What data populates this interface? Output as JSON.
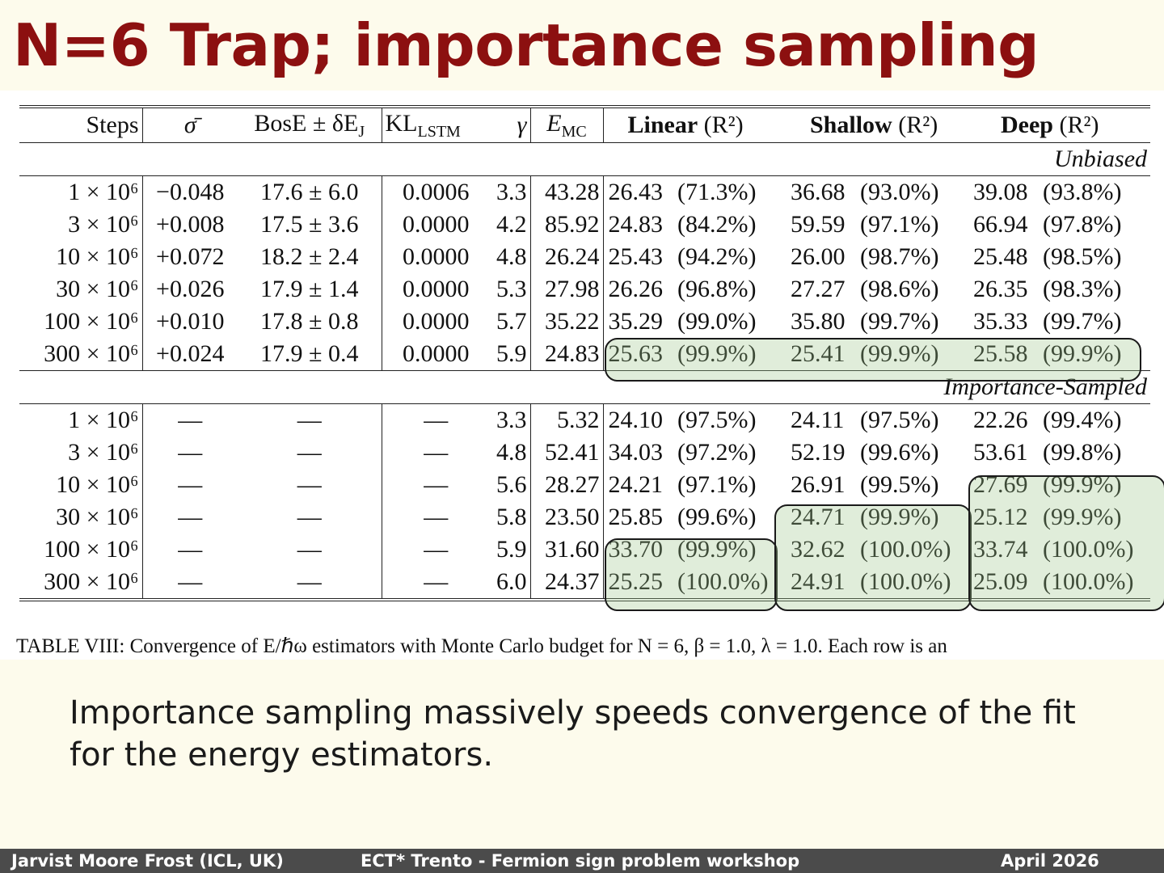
{
  "title": "N=6 Trap; importance sampling",
  "table": {
    "headers": {
      "steps": "Steps",
      "sigma": "σ̄",
      "bos": "BosE ± δE",
      "bos_sub": "J",
      "kl": "KL",
      "kl_sub": "LSTM",
      "gamma": "γ",
      "emc": "E",
      "emc_sub": "MC",
      "linear": "Linear",
      "shallow": "Shallow",
      "deep": "Deep",
      "r2": "(R²)"
    },
    "section_unbiased": "Unbiased",
    "section_importance": "Importance-Sampled",
    "unbiased_rows": [
      {
        "steps": "1 × 10⁶",
        "sigma": "−0.048",
        "bos": "17.6 ± 6.0",
        "kl": "0.0006",
        "gamma": "3.3",
        "emc": "43.28",
        "lin": "26.43",
        "lin_r": "(71.3%)",
        "sha": "36.68",
        "sha_r": "(93.0%)",
        "deep": "39.08",
        "deep_r": "(93.8%)"
      },
      {
        "steps": "3 × 10⁶",
        "sigma": "+0.008",
        "bos": "17.5 ± 3.6",
        "kl": "0.0000",
        "gamma": "4.2",
        "emc": "85.92",
        "lin": "24.83",
        "lin_r": "(84.2%)",
        "sha": "59.59",
        "sha_r": "(97.1%)",
        "deep": "66.94",
        "deep_r": "(97.8%)"
      },
      {
        "steps": "10 × 10⁶",
        "sigma": "+0.072",
        "bos": "18.2 ± 2.4",
        "kl": "0.0000",
        "gamma": "4.8",
        "emc": "26.24",
        "lin": "25.43",
        "lin_r": "(94.2%)",
        "sha": "26.00",
        "sha_r": "(98.7%)",
        "deep": "25.48",
        "deep_r": "(98.5%)"
      },
      {
        "steps": "30 × 10⁶",
        "sigma": "+0.026",
        "bos": "17.9 ± 1.4",
        "kl": "0.0000",
        "gamma": "5.3",
        "emc": "27.98",
        "lin": "26.26",
        "lin_r": "(96.8%)",
        "sha": "27.27",
        "sha_r": "(98.6%)",
        "deep": "26.35",
        "deep_r": "(98.3%)"
      },
      {
        "steps": "100 × 10⁶",
        "sigma": "+0.010",
        "bos": "17.8 ± 0.8",
        "kl": "0.0000",
        "gamma": "5.7",
        "emc": "35.22",
        "lin": "35.29",
        "lin_r": "(99.0%)",
        "sha": "35.80",
        "sha_r": "(99.7%)",
        "deep": "35.33",
        "deep_r": "(99.7%)"
      },
      {
        "steps": "300 × 10⁶",
        "sigma": "+0.024",
        "bos": "17.9 ± 0.4",
        "kl": "0.0000",
        "gamma": "5.9",
        "emc": "24.83",
        "lin": "25.63",
        "lin_r": "(99.9%)",
        "sha": "25.41",
        "sha_r": "(99.9%)",
        "deep": "25.58",
        "deep_r": "(99.9%)"
      }
    ],
    "importance_rows": [
      {
        "steps": "1 × 10⁶",
        "sigma": "—",
        "bos": "—",
        "kl": "—",
        "gamma": "3.3",
        "emc": "5.32",
        "lin": "24.10",
        "lin_r": "(97.5%)",
        "sha": "24.11",
        "sha_r": "(97.5%)",
        "deep": "22.26",
        "deep_r": "(99.4%)"
      },
      {
        "steps": "3 × 10⁶",
        "sigma": "—",
        "bos": "—",
        "kl": "—",
        "gamma": "4.8",
        "emc": "52.41",
        "lin": "34.03",
        "lin_r": "(97.2%)",
        "sha": "52.19",
        "sha_r": "(99.6%)",
        "deep": "53.61",
        "deep_r": "(99.8%)"
      },
      {
        "steps": "10 × 10⁶",
        "sigma": "—",
        "bos": "—",
        "kl": "—",
        "gamma": "5.6",
        "emc": "28.27",
        "lin": "24.21",
        "lin_r": "(97.1%)",
        "sha": "26.91",
        "sha_r": "(99.5%)",
        "deep": "27.69",
        "deep_r": "(99.9%)"
      },
      {
        "steps": "30 × 10⁶",
        "sigma": "—",
        "bos": "—",
        "kl": "—",
        "gamma": "5.8",
        "emc": "23.50",
        "lin": "25.85",
        "lin_r": "(99.6%)",
        "sha": "24.71",
        "sha_r": "(99.9%)",
        "deep": "25.12",
        "deep_r": "(99.9%)"
      },
      {
        "steps": "100 × 10⁶",
        "sigma": "—",
        "bos": "—",
        "kl": "—",
        "gamma": "5.9",
        "emc": "31.60",
        "lin": "33.70",
        "lin_r": "(99.9%)",
        "sha": "32.62",
        "sha_r": "(100.0%)",
        "deep": "33.74",
        "deep_r": "(100.0%)"
      },
      {
        "steps": "300 × 10⁶",
        "sigma": "—",
        "bos": "—",
        "kl": "—",
        "gamma": "6.0",
        "emc": "24.37",
        "lin": "25.25",
        "lin_r": "(100.0%)",
        "sha": "24.91",
        "sha_r": "(100.0%)",
        "deep": "25.09",
        "deep_r": "(100.0%)"
      }
    ],
    "caption": "TABLE VIII: Convergence of E/ℏω estimators with Monte Carlo budget for N = 6, β = 1.0, λ = 1.0. Each row is an"
  },
  "highlight_color": "#a0c88c",
  "title_color": "#8c1010",
  "note": "Importance sampling massively speeds convergence of the fit for the energy estimators.",
  "footer": {
    "author": "Jarvist Moore Frost  (ICL, UK)",
    "event": "ECT* Trento - Fermion sign problem workshop",
    "date": "April  2026"
  }
}
